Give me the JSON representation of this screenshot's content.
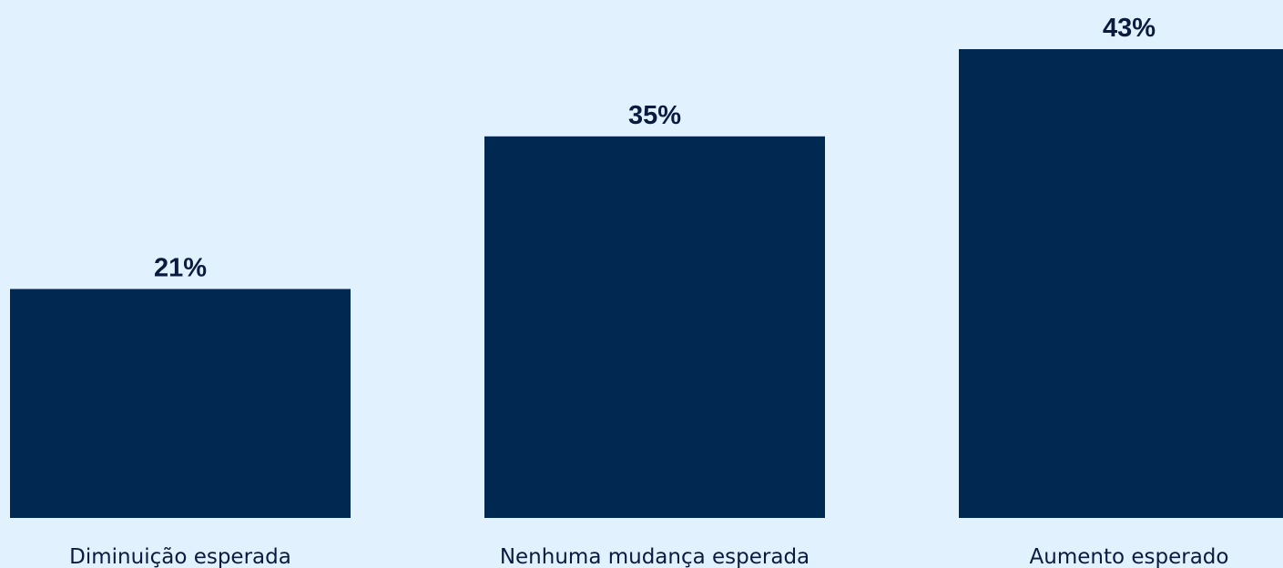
{
  "colors": {
    "background": "#e1f1fd",
    "bar": "#002850",
    "value_text": "#0b1b3f",
    "label_text": "#0b1b3f"
  },
  "chart_data": {
    "type": "bar",
    "categories": [
      "Diminuição esperada",
      "Nenhuma mudança esperada",
      "Aumento esperado"
    ],
    "values": [
      21,
      35,
      43
    ],
    "value_labels": [
      "21%",
      "35%",
      "43%"
    ],
    "ylim": [
      0,
      43
    ],
    "grid": false,
    "legend": "none"
  }
}
